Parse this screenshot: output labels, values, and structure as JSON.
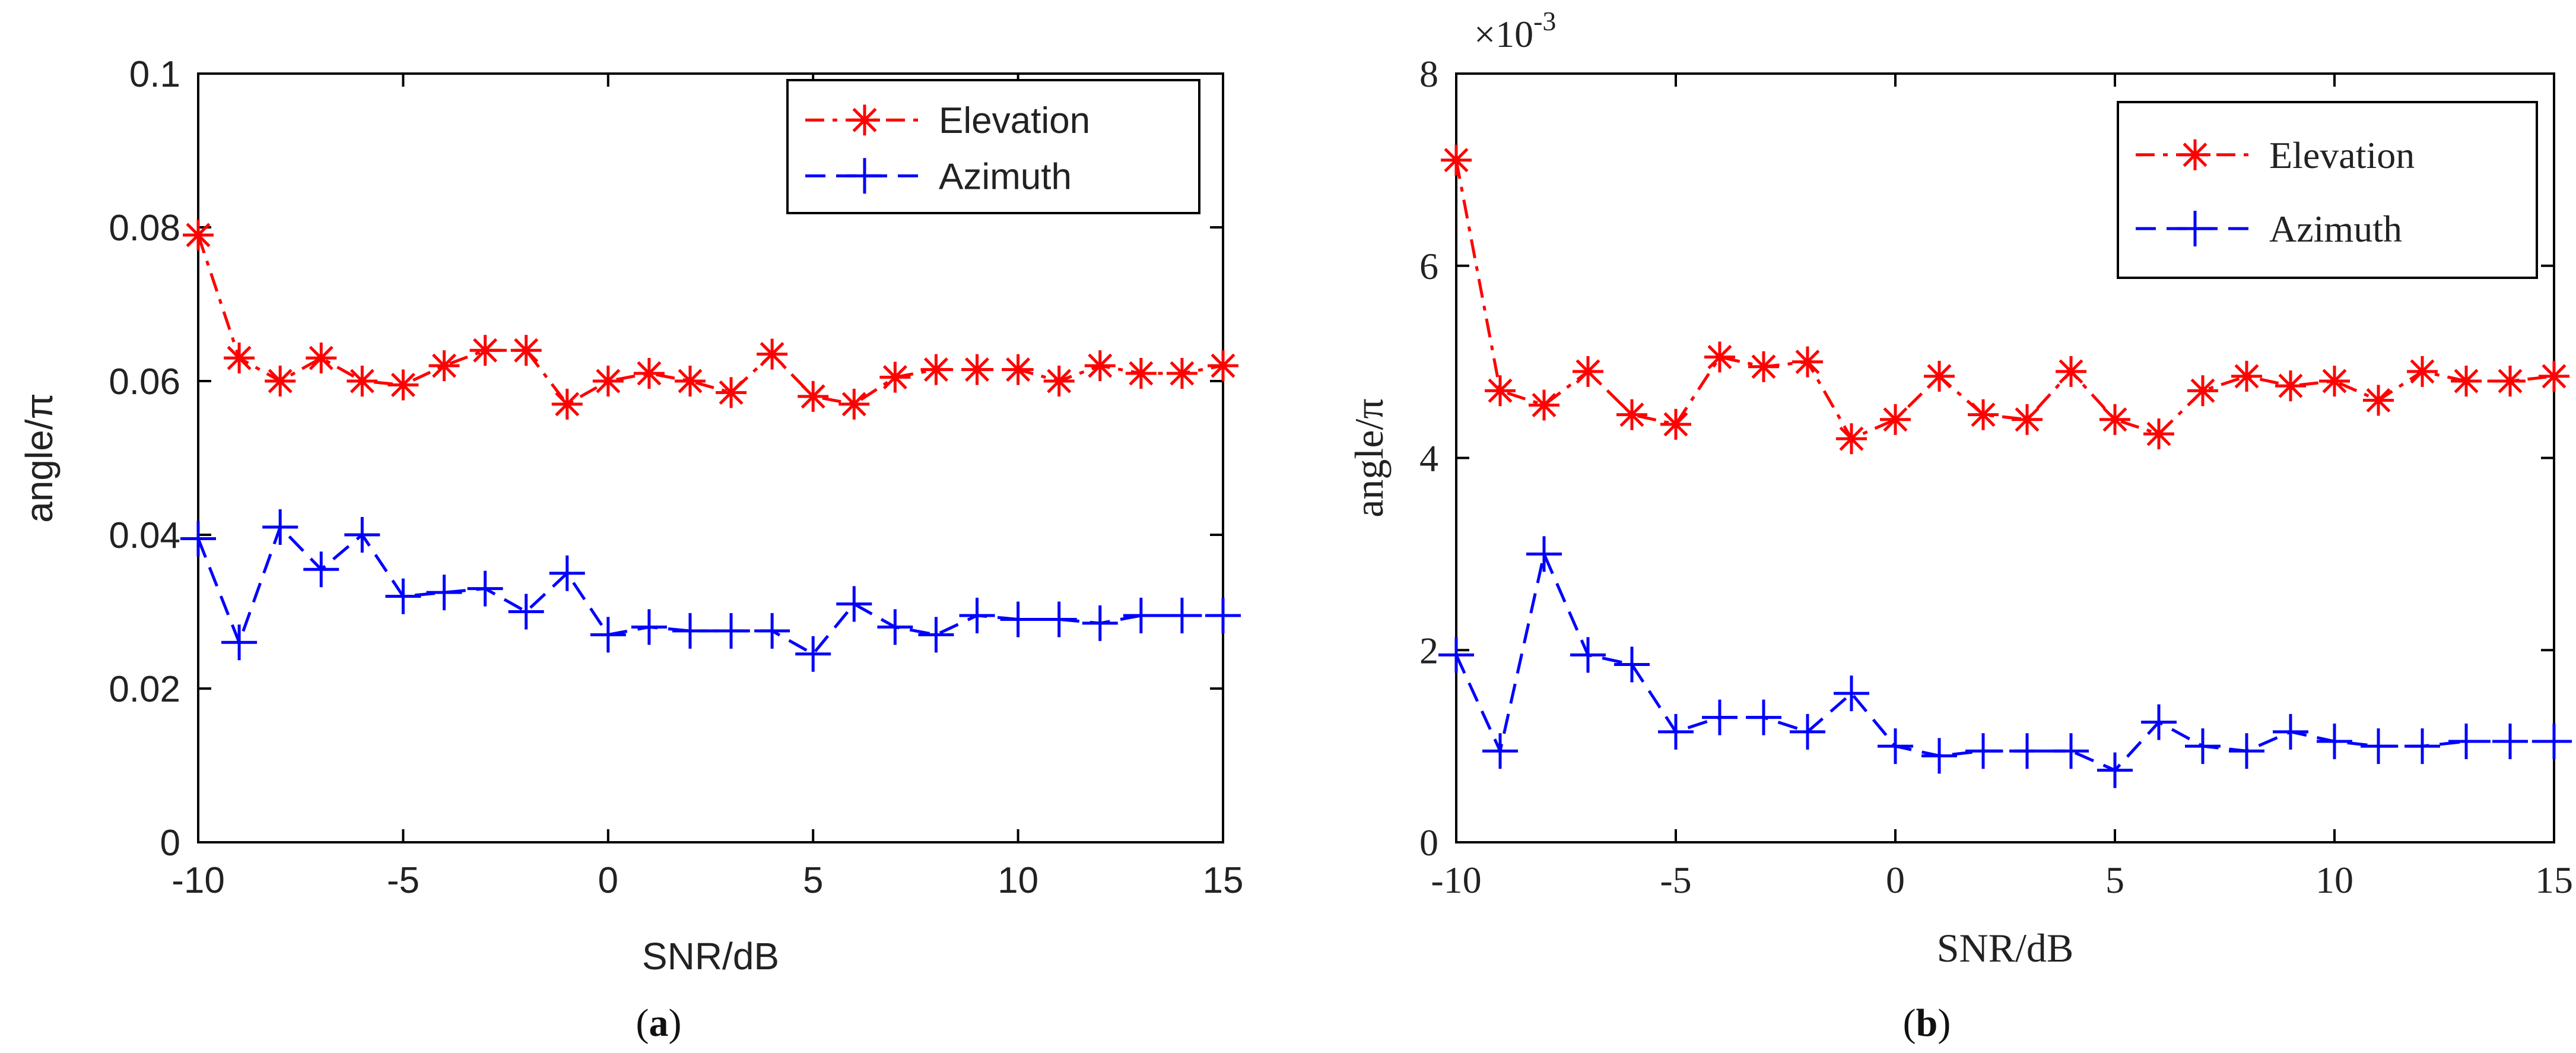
{
  "chart_data": [
    {
      "panel_label": "a",
      "type": "line",
      "xlabel": "SNR/dB",
      "ylabel": "angle/π",
      "xlim": [
        -10,
        15
      ],
      "ylim": [
        0,
        0.1
      ],
      "xticks": [
        -10,
        -5,
        0,
        5,
        10,
        15
      ],
      "xtick_labels": [
        "-10",
        "-5",
        "0",
        "5",
        "10",
        "15"
      ],
      "yticks": [
        0,
        0.02,
        0.04,
        0.06,
        0.08,
        0.1
      ],
      "ytick_labels": [
        "0",
        "0.02",
        "0.04",
        "0.06",
        "0.08",
        "0.1"
      ],
      "grid": false,
      "legend_position": "top-right",
      "x": [
        -10,
        -9,
        -8,
        -7,
        -6,
        -5,
        -4,
        -3,
        -2,
        -1,
        0,
        1,
        2,
        3,
        4,
        5,
        6,
        7,
        8,
        9,
        10,
        11,
        12,
        13,
        14,
        15
      ],
      "series": [
        {
          "name": "Elevation",
          "color": "#ff0000",
          "line_style": "dash-dot",
          "marker": "asterisk",
          "values": [
            0.079,
            0.063,
            0.06,
            0.063,
            0.06,
            0.0595,
            0.062,
            0.064,
            0.064,
            0.057,
            0.06,
            0.061,
            0.06,
            0.0585,
            0.0635,
            0.058,
            0.057,
            0.0605,
            0.0615,
            0.0615,
            0.0615,
            0.06,
            0.062,
            0.061,
            0.061,
            0.062
          ]
        },
        {
          "name": "Azimuth",
          "color": "#0000ff",
          "line_style": "dashed",
          "marker": "plus",
          "values": [
            0.0395,
            0.026,
            0.041,
            0.0355,
            0.04,
            0.032,
            0.0325,
            0.033,
            0.03,
            0.035,
            0.027,
            0.028,
            0.0275,
            0.0275,
            0.0275,
            0.0245,
            0.031,
            0.028,
            0.027,
            0.0295,
            0.029,
            0.029,
            0.0285,
            0.0295,
            0.0295,
            0.0295
          ]
        }
      ]
    },
    {
      "panel_label": "b",
      "type": "line",
      "xlabel": "SNR/dB",
      "ylabel": "angle/π",
      "y_multiplier_base": "×10",
      "y_multiplier_exponent": "-3",
      "xlim": [
        -10,
        15
      ],
      "ylim": [
        0,
        8
      ],
      "xticks": [
        -10,
        -5,
        0,
        5,
        10,
        15
      ],
      "xtick_labels": [
        "-10",
        "-5",
        "0",
        "5",
        "10",
        "15"
      ],
      "yticks": [
        0,
        2,
        4,
        6,
        8
      ],
      "ytick_labels": [
        "0",
        "2",
        "4",
        "6",
        "8"
      ],
      "grid": false,
      "legend_position": "top-right",
      "x": [
        -10,
        -9,
        -8,
        -7,
        -6,
        -5,
        -4,
        -3,
        -2,
        -1,
        0,
        1,
        2,
        3,
        4,
        5,
        6,
        7,
        8,
        9,
        10,
        11,
        12,
        13,
        14,
        15
      ],
      "series": [
        {
          "name": "Elevation",
          "color": "#ff0000",
          "line_style": "dash-dot",
          "marker": "asterisk",
          "values": [
            7.1,
            4.7,
            4.55,
            4.9,
            4.45,
            4.35,
            5.05,
            4.95,
            5.0,
            4.2,
            4.4,
            4.85,
            4.45,
            4.4,
            4.9,
            4.4,
            4.25,
            4.7,
            4.85,
            4.75,
            4.8,
            4.6,
            4.9,
            4.8,
            4.8,
            4.85
          ]
        },
        {
          "name": "Azimuth",
          "color": "#0000ff",
          "line_style": "dashed",
          "marker": "plus",
          "values": [
            1.95,
            0.95,
            3.0,
            1.95,
            1.85,
            1.15,
            1.3,
            1.3,
            1.15,
            1.55,
            1.0,
            0.9,
            0.95,
            0.95,
            0.95,
            0.75,
            1.25,
            1.0,
            0.95,
            1.15,
            1.05,
            1.0,
            1.0,
            1.05,
            1.05,
            1.05
          ]
        }
      ]
    }
  ]
}
